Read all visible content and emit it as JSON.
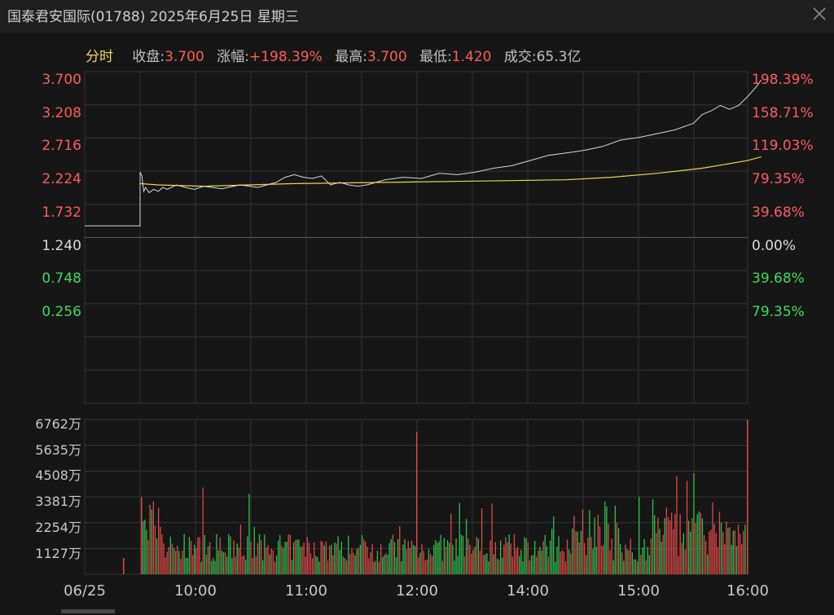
{
  "title": "国泰君安国际(01788) 2025年6月25日 星期三",
  "tab": "分时",
  "stats": [
    {
      "label": "收盘:",
      "value": "3.700"
    },
    {
      "label": "涨幅:",
      "value": "+198.39%"
    },
    {
      "label": "最高:",
      "value": "3.700"
    },
    {
      "label": "最低:",
      "value": "1.420"
    },
    {
      "label": "成交:",
      "value": "65.3亿"
    }
  ],
  "colors": {
    "up": "#ff5b5b",
    "down": "#3ddc5a",
    "price_line": "#d8d8d8",
    "avg_line": "#e8d84a",
    "grid": "#3a3a3a"
  },
  "icons": {
    "close": "close-icon"
  },
  "chart_data": {
    "type": "line",
    "price_axis_left": [
      "3.700",
      "3.208",
      "2.716",
      "2.224",
      "1.732",
      "1.240",
      "0.748",
      "0.256"
    ],
    "price_axis_right": [
      "198.39%",
      "158.71%",
      "119.03%",
      "79.35%",
      "39.68%",
      "0.00%",
      "39.68%",
      "79.35%"
    ],
    "volume_axis": [
      "6762万",
      "5635万",
      "4508万",
      "3381万",
      "2254万",
      "1127万"
    ],
    "x_ticks": [
      "06/25",
      "10:00",
      "11:00",
      "12:00",
      "14:00",
      "15:00",
      "16:00"
    ],
    "prev_close": 1.24,
    "ylim": [
      -0.236,
      3.7
    ],
    "price_series": [
      [
        9.0,
        1.42
      ],
      [
        9.1,
        1.42
      ],
      [
        9.2,
        1.42
      ],
      [
        9.29,
        1.42
      ],
      [
        9.3,
        1.42
      ],
      [
        9.3,
        2.26
      ],
      [
        9.32,
        2.2
      ],
      [
        9.34,
        1.96
      ],
      [
        9.36,
        2.02
      ],
      [
        9.4,
        1.94
      ],
      [
        9.45,
        1.99
      ],
      [
        9.5,
        1.96
      ],
      [
        9.55,
        2.02
      ],
      [
        9.6,
        1.99
      ],
      [
        9.7,
        2.06
      ],
      [
        9.8,
        2.02
      ],
      [
        9.9,
        1.99
      ],
      [
        10.0,
        2.04
      ],
      [
        10.2,
        2.0
      ],
      [
        10.4,
        2.06
      ],
      [
        10.6,
        2.02
      ],
      [
        10.8,
        2.1
      ],
      [
        10.9,
        2.18
      ],
      [
        11.0,
        2.22
      ],
      [
        11.1,
        2.18
      ],
      [
        11.2,
        2.16
      ],
      [
        11.3,
        2.2
      ],
      [
        11.4,
        2.06
      ],
      [
        11.5,
        2.1
      ],
      [
        11.6,
        2.06
      ],
      [
        11.7,
        2.04
      ],
      [
        11.8,
        2.06
      ],
      [
        11.9,
        2.1
      ],
      [
        12.0,
        2.14
      ],
      [
        12.2,
        2.18
      ],
      [
        12.4,
        2.16
      ],
      [
        12.6,
        2.24
      ],
      [
        12.8,
        2.22
      ],
      [
        13.0,
        2.26
      ],
      [
        13.2,
        2.32
      ],
      [
        13.4,
        2.36
      ],
      [
        13.6,
        2.44
      ],
      [
        13.8,
        2.52
      ],
      [
        14.0,
        2.56
      ],
      [
        14.2,
        2.6
      ],
      [
        14.4,
        2.66
      ],
      [
        14.6,
        2.76
      ],
      [
        14.8,
        2.8
      ],
      [
        15.0,
        2.86
      ],
      [
        15.2,
        2.92
      ],
      [
        15.4,
        3.02
      ],
      [
        15.5,
        3.16
      ],
      [
        15.6,
        3.22
      ],
      [
        15.7,
        3.3
      ],
      [
        15.8,
        3.24
      ],
      [
        15.9,
        3.3
      ],
      [
        16.0,
        3.44
      ],
      [
        16.1,
        3.6
      ],
      [
        16.15,
        3.7
      ]
    ],
    "avg_series": [
      [
        9.3,
        2.08
      ],
      [
        9.5,
        2.06
      ],
      [
        10.0,
        2.04
      ],
      [
        11.0,
        2.08
      ],
      [
        12.0,
        2.1
      ],
      [
        13.0,
        2.12
      ],
      [
        14.0,
        2.14
      ],
      [
        14.5,
        2.18
      ],
      [
        15.0,
        2.24
      ],
      [
        15.5,
        2.32
      ],
      [
        16.0,
        2.44
      ],
      [
        16.15,
        2.5
      ]
    ],
    "volume_ylim": [
      0,
      6762
    ]
  }
}
